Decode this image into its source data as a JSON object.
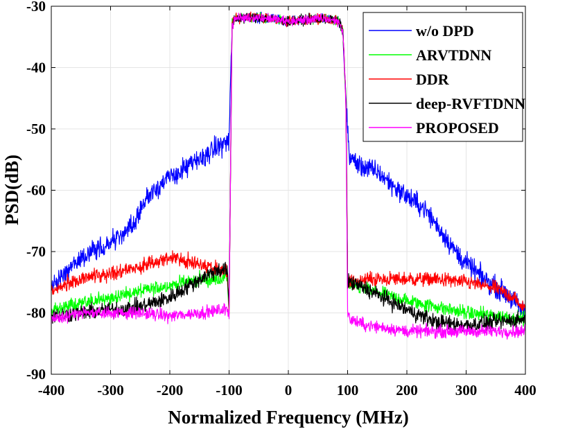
{
  "chart_data": {
    "type": "line",
    "xlabel": "Normalized Frequency (MHz)",
    "ylabel": "PSD(dB)",
    "xlim": [
      -400,
      400
    ],
    "ylim": [
      -90,
      -30
    ],
    "xticks": [
      -400,
      -300,
      -200,
      -100,
      0,
      100,
      200,
      300,
      400
    ],
    "yticks": [
      -90,
      -80,
      -70,
      -60,
      -50,
      -40,
      -30
    ],
    "grid": true,
    "legend_position": "top-right",
    "series": [
      {
        "name": "w/o DPD",
        "color": "#0000ff",
        "noise": 1.2,
        "x": [
          -400,
          -380,
          -350,
          -300,
          -275,
          -260,
          -250,
          -230,
          -200,
          -150,
          -120,
          -103,
          -100,
          -95,
          -90,
          -60,
          -30,
          0,
          30,
          60,
          85,
          92,
          97,
          100,
          103,
          120,
          150,
          180,
          200,
          230,
          260,
          290,
          330,
          370,
          400
        ],
        "y": [
          -76,
          -74,
          -71,
          -68.5,
          -67,
          -65.5,
          -63,
          -60,
          -58,
          -55,
          -53,
          -52,
          -52,
          -33,
          -32,
          -31.8,
          -32,
          -32.5,
          -32.2,
          -32,
          -32.5,
          -34,
          -45,
          -50,
          -54.5,
          -56,
          -57,
          -59.5,
          -61,
          -63,
          -67,
          -71,
          -74.5,
          -77,
          -80
        ]
      },
      {
        "name": "ARVTDNN",
        "color": "#00ff00",
        "noise": 0.8,
        "x": [
          -400,
          -350,
          -300,
          -250,
          -200,
          -150,
          -120,
          -103,
          -100,
          -95,
          -90,
          -60,
          -30,
          0,
          30,
          60,
          85,
          92,
          97,
          100,
          103,
          130,
          160,
          200,
          250,
          300,
          350,
          400
        ],
        "y": [
          -79.5,
          -78.5,
          -77.5,
          -76.5,
          -75.5,
          -74.5,
          -74.5,
          -74,
          -80,
          -33,
          -32,
          -31.8,
          -32,
          -32.5,
          -32.2,
          -32,
          -32.5,
          -34,
          -45,
          -75,
          -75.5,
          -76,
          -77,
          -78,
          -79,
          -80,
          -80.5,
          -81
        ]
      },
      {
        "name": "DDR",
        "color": "#ff0000",
        "noise": 0.8,
        "x": [
          -400,
          -370,
          -330,
          -300,
          -250,
          -200,
          -150,
          -120,
          -103,
          -100,
          -95,
          -90,
          -60,
          -30,
          0,
          30,
          60,
          85,
          92,
          97,
          100,
          103,
          130,
          170,
          200,
          250,
          300,
          350,
          380,
          400
        ],
        "y": [
          -76.5,
          -75,
          -74,
          -73.5,
          -72.5,
          -71,
          -72,
          -73,
          -73,
          -80,
          -33,
          -32,
          -31.8,
          -32,
          -32.5,
          -32.2,
          -32,
          -32.5,
          -34,
          -45,
          -75,
          -75,
          -74.5,
          -74.5,
          -74.5,
          -74.5,
          -75,
          -76,
          -77.5,
          -79.5
        ]
      },
      {
        "name": "deep-RVFTDNN",
        "color": "#000000",
        "noise": 0.9,
        "x": [
          -400,
          -350,
          -300,
          -250,
          -200,
          -150,
          -120,
          -103,
          -100,
          -95,
          -90,
          -60,
          -30,
          0,
          30,
          60,
          85,
          92,
          97,
          100,
          103,
          130,
          160,
          200,
          250,
          300,
          350,
          400
        ],
        "y": [
          -80.5,
          -80,
          -79.5,
          -79,
          -77.5,
          -74.5,
          -73,
          -73,
          -80,
          -33,
          -32,
          -31.8,
          -32,
          -32.5,
          -32.2,
          -32,
          -32.5,
          -34,
          -45,
          -75,
          -75,
          -76,
          -77.5,
          -79.5,
          -81.5,
          -82,
          -81.5,
          -81
        ]
      },
      {
        "name": "PROPOSED",
        "color": "#ff00ff",
        "noise": 0.7,
        "x": [
          -400,
          -350,
          -300,
          -250,
          -200,
          -150,
          -110,
          -103,
          -100,
          -95,
          -90,
          -60,
          -30,
          0,
          30,
          60,
          85,
          92,
          97,
          100,
          103,
          130,
          170,
          200,
          250,
          300,
          350,
          400
        ],
        "y": [
          -81,
          -80,
          -80,
          -80,
          -80.5,
          -80,
          -79.5,
          -79.5,
          -80,
          -33,
          -32,
          -31.8,
          -32,
          -32.5,
          -32.2,
          -32,
          -32.5,
          -34,
          -45,
          -80,
          -81,
          -82,
          -82.5,
          -83,
          -83,
          -83,
          -83,
          -83
        ]
      }
    ]
  }
}
